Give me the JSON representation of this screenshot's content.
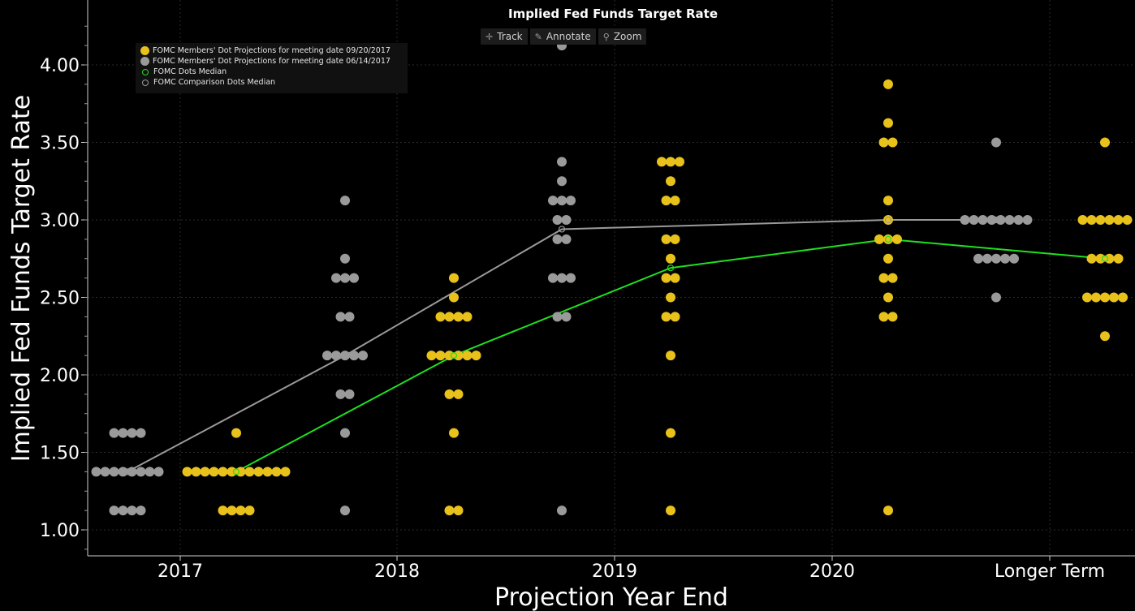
{
  "toolbar": {
    "track_label": "Track",
    "annotate_label": "Annotate",
    "zoom_label": "Zoom"
  },
  "colors": {
    "background": "#000000",
    "yellow": "#e8c21a",
    "gray": "#9a9a9a",
    "median_green": "#1fe01f",
    "comparison_gray": "#9a9a9a"
  },
  "chart_data": {
    "type": "scatter",
    "title": "Implied Fed Funds Target Rate",
    "xlabel": "Projection Year End",
    "ylabel": "Implied Fed Funds Target Rate",
    "categories": [
      "2017",
      "2018",
      "2019",
      "2020",
      "Longer Term"
    ],
    "ylim": [
      0.85,
      4.35
    ],
    "yticks": [
      "1.00",
      "1.50",
      "2.00",
      "2.50",
      "3.00",
      "3.50",
      "4.00"
    ],
    "grid": true,
    "legend_position": "top-left",
    "legend": [
      "FOMC Members' Dot Projections for meeting date 09/20/2017",
      "FOMC Members' Dot Projections for meeting date 06/14/2017",
      "FOMC Dots Median",
      "FOMC Comparison Dots Median"
    ],
    "series": [
      {
        "name": "FOMC Members' Dot Projections for meeting date 09/20/2017",
        "style": "dots",
        "color": "#e8c21a",
        "groups": [
          {
            "category": "2017",
            "levels": [
              {
                "y": 1.625,
                "count": 1
              },
              {
                "y": 1.375,
                "count": 12
              },
              {
                "y": 1.125,
                "count": 4
              }
            ]
          },
          {
            "category": "2018",
            "levels": [
              {
                "y": 2.625,
                "count": 1
              },
              {
                "y": 2.5,
                "count": 1
              },
              {
                "y": 2.375,
                "count": 4
              },
              {
                "y": 2.125,
                "count": 6
              },
              {
                "y": 1.875,
                "count": 2
              },
              {
                "y": 1.625,
                "count": 1
              },
              {
                "y": 1.125,
                "count": 2
              }
            ]
          },
          {
            "category": "2019",
            "levels": [
              {
                "y": 3.375,
                "count": 3
              },
              {
                "y": 3.25,
                "count": 1
              },
              {
                "y": 3.125,
                "count": 2
              },
              {
                "y": 2.875,
                "count": 2
              },
              {
                "y": 2.75,
                "count": 1
              },
              {
                "y": 2.625,
                "count": 2
              },
              {
                "y": 2.5,
                "count": 1
              },
              {
                "y": 2.375,
                "count": 2
              },
              {
                "y": 2.125,
                "count": 1
              },
              {
                "y": 1.625,
                "count": 1
              },
              {
                "y": 1.125,
                "count": 1
              }
            ]
          },
          {
            "category": "2020",
            "levels": [
              {
                "y": 3.875,
                "count": 1
              },
              {
                "y": 3.625,
                "count": 1
              },
              {
                "y": 3.5,
                "count": 2
              },
              {
                "y": 3.125,
                "count": 1
              },
              {
                "y": 3.0,
                "count": 1
              },
              {
                "y": 2.875,
                "count": 3
              },
              {
                "y": 2.75,
                "count": 1
              },
              {
                "y": 2.625,
                "count": 2
              },
              {
                "y": 2.5,
                "count": 1
              },
              {
                "y": 2.375,
                "count": 2
              },
              {
                "y": 1.125,
                "count": 1
              }
            ]
          },
          {
            "category": "Longer Term",
            "levels": [
              {
                "y": 3.5,
                "count": 1
              },
              {
                "y": 3.0,
                "count": 6
              },
              {
                "y": 2.75,
                "count": 4
              },
              {
                "y": 2.5,
                "count": 5
              },
              {
                "y": 2.25,
                "count": 1
              }
            ]
          }
        ]
      },
      {
        "name": "FOMC Members' Dot Projections for meeting date 06/14/2017",
        "style": "dots",
        "color": "#9a9a9a",
        "groups": [
          {
            "category": "2017",
            "levels": [
              {
                "y": 1.625,
                "count": 4
              },
              {
                "y": 1.375,
                "count": 8
              },
              {
                "y": 1.125,
                "count": 4
              }
            ]
          },
          {
            "category": "2018",
            "levels": [
              {
                "y": 3.125,
                "count": 1
              },
              {
                "y": 2.75,
                "count": 1
              },
              {
                "y": 2.625,
                "count": 3
              },
              {
                "y": 2.375,
                "count": 2
              },
              {
                "y": 2.125,
                "count": 5
              },
              {
                "y": 1.875,
                "count": 2
              },
              {
                "y": 1.625,
                "count": 1
              },
              {
                "y": 1.125,
                "count": 1
              }
            ]
          },
          {
            "category": "2019",
            "levels": [
              {
                "y": 4.125,
                "count": 1
              },
              {
                "y": 3.375,
                "count": 1
              },
              {
                "y": 3.25,
                "count": 1
              },
              {
                "y": 3.125,
                "count": 3
              },
              {
                "y": 3.0,
                "count": 2
              },
              {
                "y": 2.875,
                "count": 2
              },
              {
                "y": 2.625,
                "count": 3
              },
              {
                "y": 2.375,
                "count": 2
              },
              {
                "y": 1.125,
                "count": 1
              }
            ]
          },
          {
            "category": "Longer Term",
            "levels": [
              {
                "y": 3.5,
                "count": 1
              },
              {
                "y": 3.0,
                "count": 8
              },
              {
                "y": 2.75,
                "count": 5
              },
              {
                "y": 2.5,
                "count": 1
              }
            ]
          }
        ]
      },
      {
        "name": "FOMC Dots Median",
        "style": "line",
        "color": "#1fe01f",
        "x": [
          "2017",
          "2018",
          "2019",
          "2020",
          "Longer Term"
        ],
        "values": [
          1.375,
          2.125,
          2.69,
          2.875,
          2.75
        ]
      },
      {
        "name": "FOMC Comparison Dots Median",
        "style": "line",
        "color": "#9a9a9a",
        "x": [
          "2017",
          "2018",
          "2019",
          "2020",
          "Longer Term"
        ],
        "values": [
          1.375,
          2.125,
          2.94,
          3.0,
          3.0
        ]
      }
    ]
  }
}
